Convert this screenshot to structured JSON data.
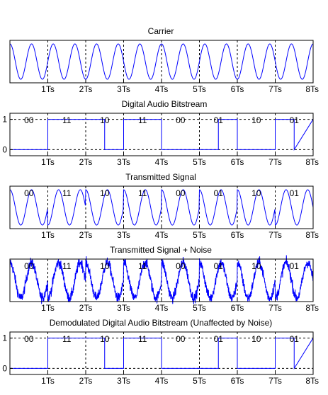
{
  "colors": {
    "signal": "#0000ff",
    "axes": "#000000",
    "grid": "#000000",
    "background": "#ffffff"
  },
  "shared": {
    "x_tick_labels": [
      "1Ts",
      "2Ts",
      "3Ts",
      "4Ts",
      "5Ts",
      "6Ts",
      "7Ts",
      "8Ts"
    ],
    "bit_pairs": [
      "00",
      "11",
      "10",
      "11",
      "00",
      "01",
      "10",
      "01"
    ],
    "carrier_cycles_per_Ts": 1.75,
    "symbol_phase_deg": {
      "00": 0,
      "01": 90,
      "10": 180,
      "11": 270
    }
  },
  "chart_data": [
    {
      "type": "line",
      "title": "Carrier",
      "xlabel": "",
      "ylabel": "",
      "xlim": [
        0,
        8
      ],
      "ylim": [
        -1.2,
        1.2
      ],
      "grid": "vertical-dashed",
      "series": [
        {
          "signal": "sine",
          "frequency_cycles_per_Ts": 1.75,
          "amplitude": 1
        }
      ]
    },
    {
      "type": "line",
      "title": "Digital Audio Bitstream",
      "xlabel": "",
      "ylabel": "",
      "xlim": [
        0,
        8
      ],
      "ylim": [
        -0.2,
        1.2
      ],
      "y_tick_labels": [
        "0",
        "1"
      ],
      "grid": "vertical-and-horizontal-dashed",
      "annotations": [
        "00",
        "11",
        "10",
        "11",
        "00",
        "01",
        "10",
        "01"
      ],
      "series": [
        {
          "signal": "step",
          "x": [
            0,
            1,
            1,
            2.5,
            2.5,
            3,
            3,
            4,
            4,
            5.5,
            5.5,
            6,
            6,
            7,
            7,
            7.5,
            7.5,
            8
          ],
          "y": [
            0,
            0,
            1,
            1,
            0,
            0,
            1,
            1,
            0,
            0,
            1,
            1,
            0,
            0,
            1,
            1,
            0,
            1
          ]
        }
      ]
    },
    {
      "type": "line",
      "title": "Transmitted Signal",
      "xlabel": "",
      "ylabel": "",
      "xlim": [
        0,
        8
      ],
      "ylim": [
        -1.2,
        1.2
      ],
      "grid": "vertical-dashed",
      "annotations": [
        "00",
        "11",
        "10",
        "11",
        "00",
        "01",
        "10",
        "01"
      ],
      "series": [
        {
          "signal": "qpsk",
          "frequency_cycles_per_Ts": 1.75,
          "amplitude": 1
        }
      ]
    },
    {
      "type": "line",
      "title": "Transmitted Signal + Noise",
      "xlabel": "",
      "ylabel": "",
      "xlim": [
        0,
        8
      ],
      "ylim": [
        -1.2,
        1.2
      ],
      "grid": "vertical-dashed",
      "annotations": [
        "00",
        "11",
        "10",
        "11",
        "00",
        "01",
        "10",
        "01"
      ],
      "series": [
        {
          "signal": "qpsk-noisy",
          "frequency_cycles_per_Ts": 1.75,
          "amplitude": 1,
          "noise_amplitude": 0.15
        }
      ]
    },
    {
      "type": "line",
      "title": "Demodulated Digital Audio Bitstream (Unaffected by Noise)",
      "xlabel": "",
      "ylabel": "",
      "xlim": [
        0,
        8
      ],
      "ylim": [
        -0.2,
        1.2
      ],
      "y_tick_labels": [
        "0",
        "1"
      ],
      "grid": "vertical-and-horizontal-dashed",
      "annotations": [
        "00",
        "11",
        "10",
        "11",
        "00",
        "01",
        "10",
        "01"
      ],
      "series": [
        {
          "signal": "step",
          "x": [
            0,
            1,
            1,
            2.5,
            2.5,
            3,
            3,
            4,
            4,
            5.5,
            5.5,
            6,
            6,
            7,
            7,
            7.5,
            7.5,
            8
          ],
          "y": [
            0,
            0,
            1,
            1,
            0,
            0,
            1,
            1,
            0,
            0,
            1,
            1,
            0,
            0,
            1,
            1,
            0,
            1
          ]
        }
      ]
    }
  ]
}
